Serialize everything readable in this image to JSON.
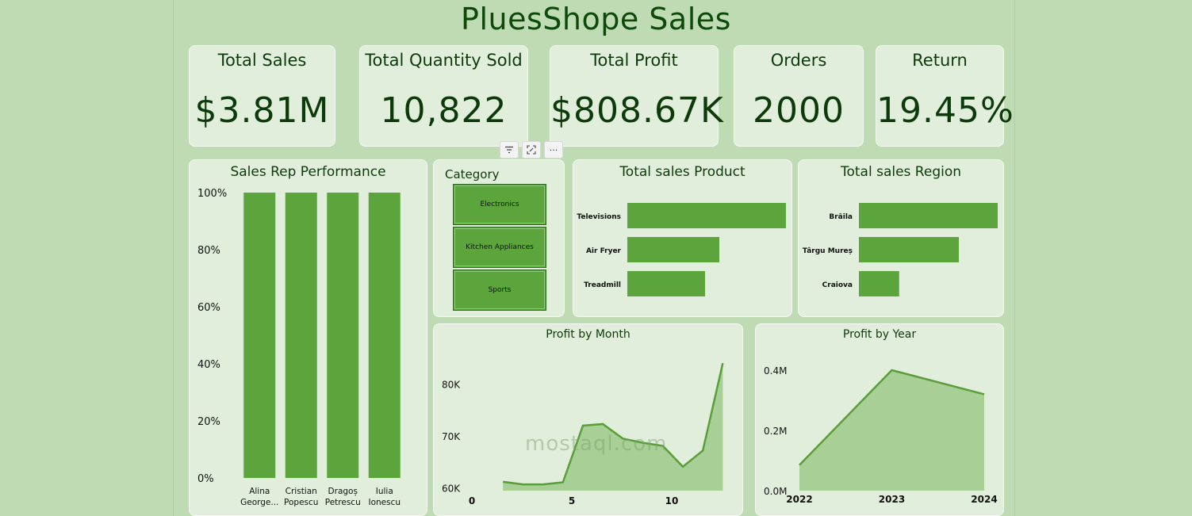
{
  "title": "PluesShope Sales",
  "kpis": [
    {
      "label": "Total Sales",
      "value": "$3.81M"
    },
    {
      "label": "Total Quantity Sold",
      "value": "10,822"
    },
    {
      "label": "Total Profit",
      "value": "$808.67K"
    },
    {
      "label": "Orders",
      "value": "2000"
    },
    {
      "label": "Return",
      "value": "19.45%"
    }
  ],
  "toolbar": {
    "filter_icon": "filter-icon",
    "focus_icon": "focus-mode-icon",
    "more_label": "···"
  },
  "category_slicer": {
    "title": "Category",
    "items": [
      "Electronics",
      "Kitchen Appliances",
      "Sports"
    ]
  },
  "watermark": "mostaql.com",
  "colors": {
    "bar": "#5ba53c",
    "line": "#5a9e3a",
    "area": "#a8cf95",
    "card": "#e1eedb",
    "background": "#bfdbb3"
  },
  "chart_data": [
    {
      "type": "bar",
      "title": "Sales Rep Performance",
      "categories": [
        "Alina George...",
        "Cristian Popescu",
        "Dragoș Petrescu",
        "Iulia Ionescu"
      ],
      "category_lines": [
        [
          "Alina",
          "George..."
        ],
        [
          "Cristian",
          "Popescu"
        ],
        [
          "Dragoș",
          "Petrescu"
        ],
        [
          "Iulia",
          "Ionescu"
        ]
      ],
      "values": [
        100,
        100,
        100,
        100
      ],
      "ylim": [
        0,
        100
      ],
      "yticks": [
        "0%",
        "20%",
        "40%",
        "60%",
        "80%",
        "100%"
      ]
    },
    {
      "type": "bar",
      "orientation": "horizontal",
      "title": "Total sales Product",
      "categories": [
        "Televisions",
        "Air Fryer",
        "Treadmill"
      ],
      "values": [
        1.0,
        0.58,
        0.49
      ]
    },
    {
      "type": "bar",
      "orientation": "horizontal",
      "title": "Total sales Region",
      "categories": [
        "Brăila",
        "Târgu Mureș",
        "Craiova"
      ],
      "values": [
        1.0,
        0.72,
        0.29
      ]
    },
    {
      "type": "area",
      "title": "Profit by Month",
      "x": [
        1,
        2,
        3,
        4,
        5,
        6,
        7,
        8,
        9,
        10,
        11,
        12
      ],
      "values": [
        61200,
        60700,
        60700,
        61100,
        72000,
        72300,
        69500,
        68700,
        68100,
        64100,
        67200,
        84000
      ],
      "ylim": [
        59500,
        86000
      ],
      "yticks": [
        {
          "v": 60000,
          "label": "60K"
        },
        {
          "v": 70000,
          "label": "70K"
        },
        {
          "v": 80000,
          "label": "80K"
        }
      ],
      "xticks": [
        {
          "v": 0,
          "label": "0"
        },
        {
          "v": 5,
          "label": "5"
        },
        {
          "v": 10,
          "label": "10"
        }
      ],
      "xlim": [
        0,
        12.5
      ]
    },
    {
      "type": "area",
      "title": "Profit by Year",
      "x": [
        "2022",
        "2023",
        "2024"
      ],
      "values": [
        0.085,
        0.4,
        0.32
      ],
      "ylim": [
        0,
        0.5
      ],
      "yticks": [
        {
          "v": 0,
          "label": "0.0M"
        },
        {
          "v": 0.2,
          "label": "0.2M"
        },
        {
          "v": 0.4,
          "label": "0.4M"
        }
      ]
    }
  ]
}
